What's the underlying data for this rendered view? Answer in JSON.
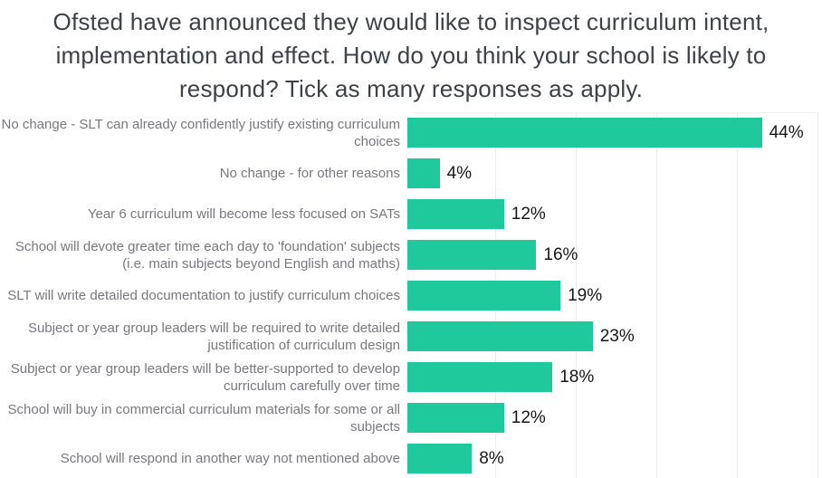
{
  "title": "Ofsted have announced they would like to inspect curriculum intent, implementation and effect. How do you think your school is likely to respond? Tick as many responses as apply.",
  "chart_data": {
    "type": "bar",
    "orientation": "horizontal",
    "title": "Ofsted have announced they would like to inspect curriculum intent, implementation and effect. How do you think your school is likely to respond? Tick as many responses as apply.",
    "categories": [
      "No change - SLT can already confidently justify existing curriculum choices",
      "No change - for other reasons",
      "Year 6 curriculum will become less focused on SATs",
      "School will devote greater time each day to 'foundation' subjects (i.e. main subjects beyond English and maths)",
      "SLT will write detailed documentation to justify curriculum choices",
      "Subject or year group leaders will be required to write detailed justification of curriculum design",
      "Subject or year group leaders will be better-supported to develop curriculum carefully over time",
      "School will buy in commercial curriculum materials for some or all subjects",
      "School will respond in another way not mentioned above"
    ],
    "values": [
      44,
      4,
      12,
      16,
      19,
      23,
      18,
      12,
      8
    ],
    "unit": "%",
    "data_labels": [
      "44%",
      "4%",
      "12%",
      "16%",
      "19%",
      "23%",
      "18%",
      "12%",
      "8%"
    ],
    "xlim": [
      0,
      50
    ],
    "gridline_interval": 10,
    "grid": true,
    "legend": false,
    "xlabel": "",
    "ylabel": "",
    "bar_color": "#1fc99c",
    "gridline_color": "#ececec",
    "value_label_color": "#17181a",
    "category_label_color": "#77797e",
    "title_color": "#3e4247"
  }
}
